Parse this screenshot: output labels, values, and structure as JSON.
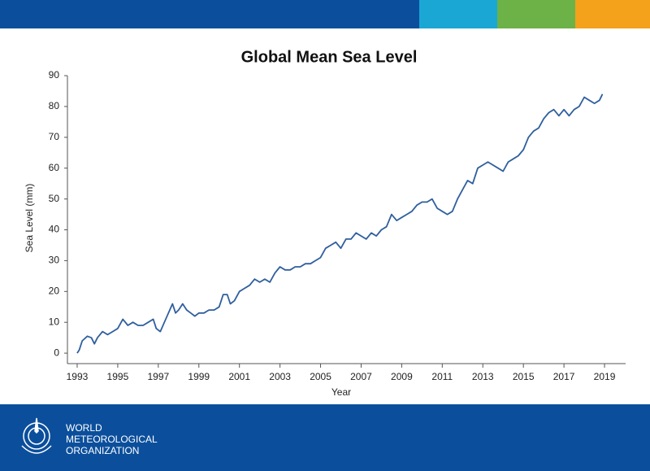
{
  "chart_data": {
    "type": "line",
    "title": "Global Mean Sea Level",
    "x_label": "Year",
    "y_label": "Sea Level (mm)",
    "x": [
      1993.0,
      1993.1,
      1993.25,
      1993.5,
      1993.7,
      1993.85,
      1994.0,
      1994.25,
      1994.5,
      1994.75,
      1995.0,
      1995.25,
      1995.5,
      1995.75,
      1996.0,
      1996.25,
      1996.5,
      1996.75,
      1996.9,
      1997.1,
      1997.3,
      1997.5,
      1997.7,
      1997.85,
      1998.0,
      1998.2,
      1998.4,
      1998.6,
      1998.8,
      1999.0,
      1999.25,
      1999.5,
      1999.75,
      2000.0,
      2000.2,
      2000.4,
      2000.55,
      2000.75,
      2001.0,
      2001.25,
      2001.5,
      2001.75,
      2002.0,
      2002.25,
      2002.5,
      2002.75,
      2003.0,
      2003.25,
      2003.5,
      2003.75,
      2004.0,
      2004.25,
      2004.5,
      2004.75,
      2005.0,
      2005.25,
      2005.5,
      2005.75,
      2006.0,
      2006.25,
      2006.5,
      2006.75,
      2007.0,
      2007.25,
      2007.5,
      2007.75,
      2008.0,
      2008.25,
      2008.5,
      2008.75,
      2009.0,
      2009.25,
      2009.5,
      2009.75,
      2010.0,
      2010.25,
      2010.5,
      2010.75,
      2011.0,
      2011.25,
      2011.5,
      2011.75,
      2012.0,
      2012.25,
      2012.5,
      2012.75,
      2013.0,
      2013.25,
      2013.5,
      2013.75,
      2014.0,
      2014.25,
      2014.5,
      2014.75,
      2015.0,
      2015.25,
      2015.5,
      2015.75,
      2016.0,
      2016.25,
      2016.5,
      2016.75,
      2017.0,
      2017.25,
      2017.5,
      2017.75,
      2018.0,
      2018.25,
      2018.5,
      2018.75,
      2018.9
    ],
    "series": [
      {
        "color": "#2f5f9e",
        "values": [
          0,
          1,
          4,
          5.5,
          5,
          3,
          5,
          7,
          6,
          7,
          8,
          11,
          9,
          10,
          9,
          9,
          10,
          11,
          8,
          7,
          10,
          13,
          16,
          13,
          14,
          16,
          14,
          13,
          12,
          13,
          13,
          14,
          14,
          15,
          19,
          19,
          16,
          17,
          20,
          21,
          22,
          24,
          23,
          24,
          23,
          26,
          28,
          27,
          27,
          28,
          28,
          29,
          29,
          30,
          31,
          34,
          35,
          36,
          34,
          37,
          37,
          39,
          38,
          37,
          39,
          38,
          40,
          41,
          45,
          43,
          44,
          45,
          46,
          48,
          49,
          49,
          50,
          47,
          46,
          45,
          46,
          50,
          53,
          56,
          55,
          60,
          61,
          62,
          61,
          60,
          59,
          62,
          63,
          64,
          66,
          70,
          72,
          73,
          76,
          78,
          79,
          77,
          79,
          77,
          79,
          80,
          83,
          82,
          81,
          82,
          84
        ]
      }
    ],
    "xlim": [
      1992.52,
      2020.04
    ],
    "xticks": [
      1993,
      1995,
      1997,
      1999,
      2001,
      2003,
      2005,
      2007,
      2009,
      2011,
      2013,
      2015,
      2017,
      2019
    ],
    "ylim": [
      -3.4,
      90
    ],
    "yticks": [
      0,
      10,
      20,
      30,
      40,
      50,
      60,
      70,
      80,
      90
    ]
  },
  "org_name": [
    "WORLD",
    "METEOROLOGICAL",
    "ORGANIZATION"
  ]
}
